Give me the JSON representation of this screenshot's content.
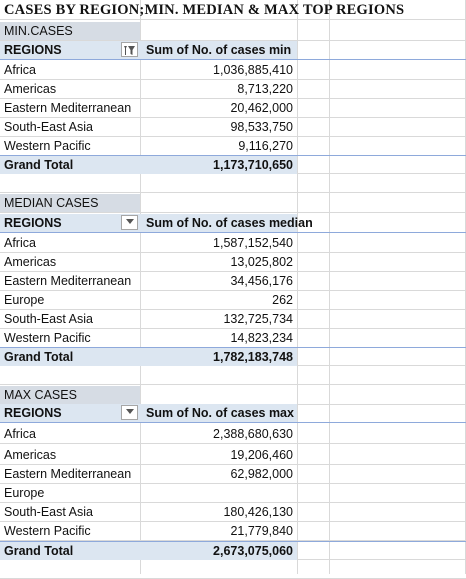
{
  "sheet_title": "CASES BY REGION;MIN. MEDIAN & MAX TOP REGIONS",
  "sections": [
    {
      "label": "MIN.CASES",
      "col_regions": "REGIONS",
      "col_value": "Sum of No. of cases min",
      "filter_icon": "filter-applied-icon",
      "rows": [
        {
          "region": "Africa",
          "value": "1,036,885,410"
        },
        {
          "region": "Americas",
          "value": "8,713,220"
        },
        {
          "region": "Eastern Mediterranean",
          "value": "20,462,000"
        },
        {
          "region": "South-East Asia",
          "value": "98,533,750"
        },
        {
          "region": "Western Pacific",
          "value": "9,116,270"
        }
      ],
      "total_label": "Grand Total",
      "total_value": "1,173,710,650"
    },
    {
      "label": "MEDIAN CASES",
      "col_regions": "REGIONS",
      "col_value": "Sum of No. of cases median",
      "filter_icon": "dropdown-arrow-icon",
      "rows": [
        {
          "region": "Africa",
          "value": "1,587,152,540"
        },
        {
          "region": "Americas",
          "value": "13,025,802"
        },
        {
          "region": "Eastern Mediterranean",
          "value": "34,456,176"
        },
        {
          "region": "Europe",
          "value": "262"
        },
        {
          "region": "South-East Asia",
          "value": "132,725,734"
        },
        {
          "region": "Western Pacific",
          "value": "14,823,234"
        }
      ],
      "total_label": "Grand Total",
      "total_value": "1,782,183,748"
    },
    {
      "label": "MAX CASES",
      "col_regions": "REGIONS",
      "col_value": "Sum of No. of cases max",
      "filter_icon": "dropdown-arrow-icon",
      "rows": [
        {
          "region": "Africa",
          "value": "2,388,680,630"
        },
        {
          "region": "Americas",
          "value": "19,206,460"
        },
        {
          "region": "Eastern Mediterranean",
          "value": "62,982,000"
        },
        {
          "region": "Europe",
          "value": ""
        },
        {
          "region": "South-East Asia",
          "value": "180,426,130"
        },
        {
          "region": "Western Pacific",
          "value": "21,779,840"
        }
      ],
      "total_label": "Grand Total",
      "total_value": "2,673,075,060"
    }
  ],
  "colors": {
    "header_fill": "#dce6f1",
    "section_label_fill": "#d6dce4",
    "grid": "#d9d9d9",
    "table_border": "#8ea9db"
  }
}
